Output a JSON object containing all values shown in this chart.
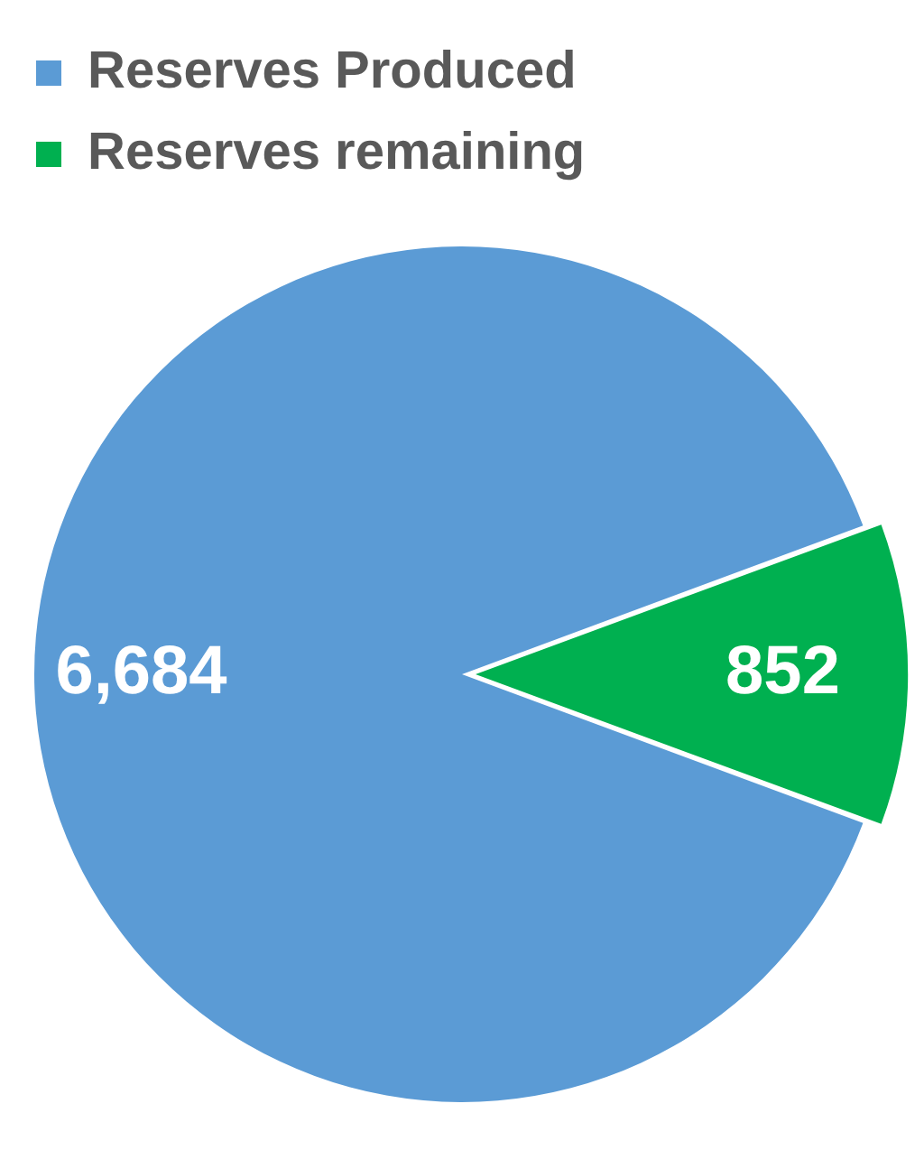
{
  "chart_data": {
    "type": "pie",
    "categories": [
      "Reserves Produced",
      "Reserves remaining"
    ],
    "values": [
      6684,
      852
    ],
    "colors": [
      "#5b9bd5",
      "#00b050"
    ],
    "value_labels": [
      "6,684",
      "852"
    ],
    "legend": "top left"
  }
}
